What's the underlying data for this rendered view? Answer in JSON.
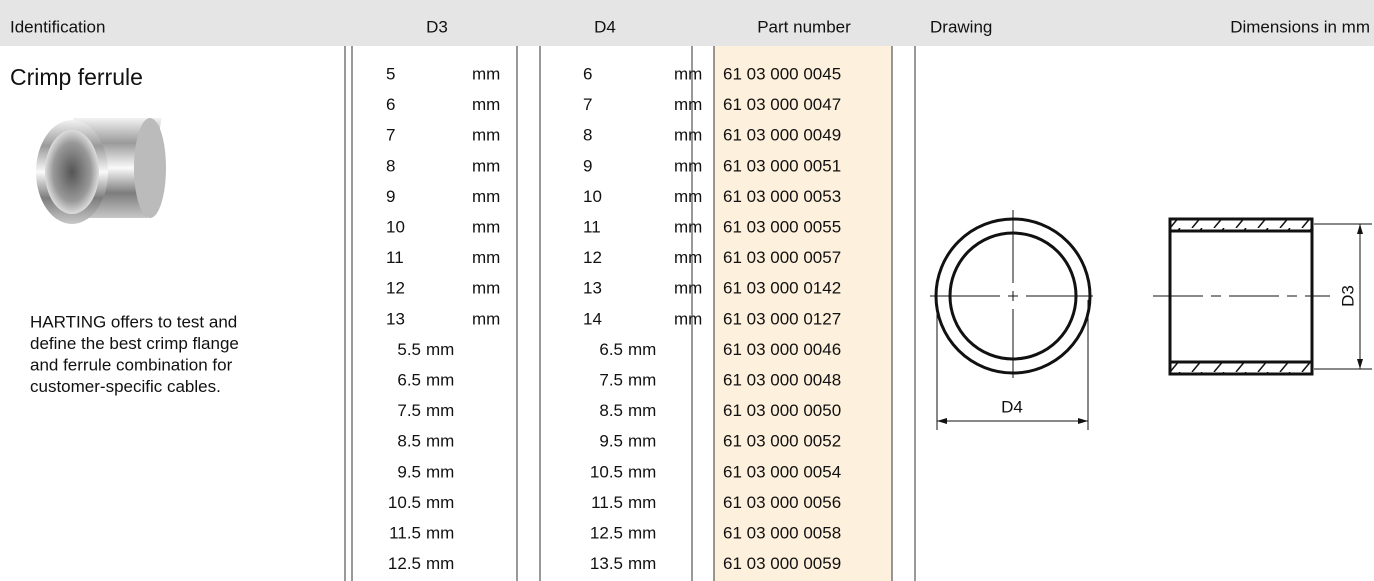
{
  "header": {
    "identification": "Identification",
    "d3": "D3",
    "d4": "D4",
    "part_number": "Part number",
    "drawing": "Drawing",
    "dimensions": "Dimensions in mm"
  },
  "product": {
    "name": "Crimp ferrule",
    "description": [
      "HARTING offers to test and",
      "define the best crimp flange",
      "and ferrule combination for",
      "customer-specific cables."
    ]
  },
  "table": {
    "rows": [
      {
        "d3": {
          "value": "5",
          "unit": "mm"
        },
        "d4": {
          "value": "6",
          "unit": "mm"
        },
        "part_number": "61 03 000 0045"
      },
      {
        "d3": {
          "value": "6",
          "unit": "mm"
        },
        "d4": {
          "value": "7",
          "unit": "mm"
        },
        "part_number": "61 03 000 0047"
      },
      {
        "d3": {
          "value": "7",
          "unit": "mm"
        },
        "d4": {
          "value": "8",
          "unit": "mm"
        },
        "part_number": "61 03 000 0049"
      },
      {
        "d3": {
          "value": "8",
          "unit": "mm"
        },
        "d4": {
          "value": "9",
          "unit": "mm"
        },
        "part_number": "61 03 000 0051"
      },
      {
        "d3": {
          "value": "9",
          "unit": "mm"
        },
        "d4": {
          "value": "10",
          "unit": "mm"
        },
        "part_number": "61 03 000 0053"
      },
      {
        "d3": {
          "value": "10",
          "unit": "mm"
        },
        "d4": {
          "value": "11",
          "unit": "mm"
        },
        "part_number": "61 03 000 0055"
      },
      {
        "d3": {
          "value": "11",
          "unit": "mm"
        },
        "d4": {
          "value": "12",
          "unit": "mm"
        },
        "part_number": "61 03 000 0057"
      },
      {
        "d3": {
          "value": "12",
          "unit": "mm"
        },
        "d4": {
          "value": "13",
          "unit": "mm"
        },
        "part_number": "61 03 000 0142"
      },
      {
        "d3": {
          "value": "13",
          "unit": "mm"
        },
        "d4": {
          "value": "14",
          "unit": "mm"
        },
        "part_number": "61 03 000 0127"
      },
      {
        "d3": {
          "value": "5.5",
          "unit": "mm"
        },
        "d4": {
          "value": "6.5",
          "unit": "mm"
        },
        "part_number": "61 03 000 0046"
      },
      {
        "d3": {
          "value": "6.5",
          "unit": "mm"
        },
        "d4": {
          "value": "7.5",
          "unit": "mm"
        },
        "part_number": "61 03 000 0048"
      },
      {
        "d3": {
          "value": "7.5",
          "unit": "mm"
        },
        "d4": {
          "value": "8.5",
          "unit": "mm"
        },
        "part_number": "61 03 000 0050"
      },
      {
        "d3": {
          "value": "8.5",
          "unit": "mm"
        },
        "d4": {
          "value": "9.5",
          "unit": "mm"
        },
        "part_number": "61 03 000 0052"
      },
      {
        "d3": {
          "value": "9.5",
          "unit": "mm"
        },
        "d4": {
          "value": "10.5",
          "unit": "mm"
        },
        "part_number": "61 03 000 0054"
      },
      {
        "d3": {
          "value": "10.5",
          "unit": "mm"
        },
        "d4": {
          "value": "11.5",
          "unit": "mm"
        },
        "part_number": "61 03 000 0056"
      },
      {
        "d3": {
          "value": "11.5",
          "unit": "mm"
        },
        "d4": {
          "value": "12.5",
          "unit": "mm"
        },
        "part_number": "61 03 000 0058"
      },
      {
        "d3": {
          "value": "12.5",
          "unit": "mm"
        },
        "d4": {
          "value": "13.5",
          "unit": "mm"
        },
        "part_number": "61 03 000 0059"
      }
    ]
  },
  "drawing": {
    "front_label": "D4",
    "side_label": "D3"
  }
}
